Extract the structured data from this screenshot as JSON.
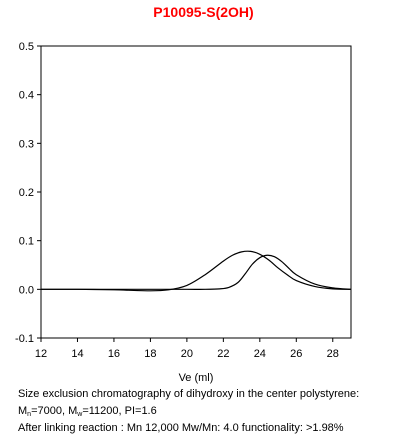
{
  "chart_data": {
    "type": "line",
    "title": "P10095-S(2OH)",
    "xlabel": "Ve (ml)",
    "ylabel": "",
    "xlim": [
      12,
      29
    ],
    "ylim": [
      -0.1,
      0.5
    ],
    "x_ticks": [
      12,
      14,
      16,
      18,
      20,
      22,
      24,
      26,
      28
    ],
    "y_ticks": [
      -0.1,
      0.0,
      0.1,
      0.2,
      0.3,
      0.4,
      0.5
    ],
    "y_tick_labels": [
      "-0.1",
      "0.0",
      "0.1",
      "0.2",
      "0.3",
      "0.4",
      "0.5"
    ],
    "grid": false,
    "series": [
      {
        "x": [
          12,
          14,
          16,
          18,
          19,
          20,
          21,
          22,
          22.5,
          23,
          23.5,
          24,
          24.5,
          25,
          25.5,
          26,
          27,
          28,
          29
        ],
        "values": [
          0,
          0,
          -0.001,
          -0.003,
          -0.001,
          0.008,
          0.03,
          0.058,
          0.07,
          0.077,
          0.078,
          0.072,
          0.06,
          0.044,
          0.03,
          0.018,
          0.006,
          0.001,
          0
        ]
      },
      {
        "x": [
          12,
          14,
          16,
          18,
          20,
          21,
          21.8,
          22.3,
          22.8,
          23.2,
          23.6,
          24,
          24.4,
          24.8,
          25.2,
          25.6,
          26,
          27,
          28,
          29
        ],
        "values": [
          0,
          0,
          0,
          0,
          0,
          0,
          0.001,
          0.004,
          0.014,
          0.032,
          0.052,
          0.065,
          0.07,
          0.067,
          0.057,
          0.043,
          0.03,
          0.011,
          0.003,
          0
        ]
      }
    ]
  },
  "caption": {
    "line1": "Size exclusion chromatography of dihydroxy in the center polystyrene:",
    "mn_prefix": "M",
    "mn_sub": "n",
    "mn_value": "=7000, M",
    "mw_sub": "w",
    "mw_value": "=11200, PI=1.6",
    "line3": "After linking reaction :  Mn 12,000 Mw/Mn: 4.0 functionality: >1.98%"
  },
  "colors": {
    "title": "#ff0000",
    "line": "#000000"
  }
}
